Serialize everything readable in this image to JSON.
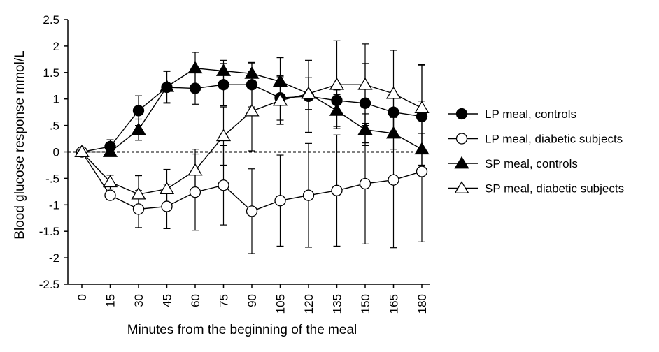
{
  "chart_data": {
    "type": "line",
    "xlabel": "Minutes from the beginning of the meal",
    "ylabel": "Blood glucose response mmol/L",
    "x": [
      0,
      15,
      30,
      45,
      60,
      75,
      90,
      105,
      120,
      135,
      150,
      165,
      180
    ],
    "x_tick_labels": [
      "0",
      "15",
      "30",
      "45",
      "60",
      "75",
      "90",
      "105",
      "120",
      "135",
      "150",
      "165",
      "180"
    ],
    "ylim": [
      -2.5,
      2.5
    ],
    "y_ticks": [
      -2.5,
      -2,
      -1.5,
      -1,
      -0.5,
      0,
      0.5,
      1,
      1.5,
      2,
      2.5
    ],
    "y_tick_labels": [
      "-2.5",
      "-2",
      "-1.5",
      "-1",
      "-.5",
      "0",
      ".5",
      "1",
      "1.5",
      "2",
      "2.5"
    ],
    "reference_line": {
      "y": 0,
      "style": "dashed"
    },
    "grid": false,
    "legend_position": "right",
    "series": [
      {
        "name": "LP meal, controls",
        "marker": "circle-filled",
        "values": [
          0,
          0.1,
          0.78,
          1.22,
          1.2,
          1.27,
          1.27,
          1.02,
          1.05,
          0.97,
          0.92,
          0.75,
          0.67
        ],
        "error": [
          0,
          0.13,
          0.28,
          0.3,
          0.3,
          0.4,
          0.42,
          0.42,
          0.68,
          0.2,
          0.75,
          0.35,
          0.97
        ]
      },
      {
        "name": "LP meal, diabetic subjects",
        "marker": "circle-open",
        "values": [
          0,
          -0.82,
          -1.08,
          -1.03,
          -0.76,
          -0.63,
          -1.12,
          -0.92,
          -0.82,
          -0.73,
          -0.6,
          -0.53,
          -0.37
        ],
        "error": [
          0,
          0.0,
          0.35,
          0.42,
          0.72,
          0.75,
          0.8,
          0.86,
          0.98,
          1.05,
          1.14,
          1.28,
          1.33
        ]
      },
      {
        "name": "SP meal, controls",
        "marker": "triangle-filled",
        "values": [
          0,
          0.0,
          0.42,
          1.23,
          1.58,
          1.53,
          1.48,
          1.33,
          1.1,
          0.78,
          0.42,
          0.35,
          0.05
        ],
        "error": [
          0,
          0.05,
          0.2,
          0.3,
          0.3,
          0.2,
          0.2,
          0.45,
          0.3,
          0.3,
          0.3,
          0.3,
          0.3
        ]
      },
      {
        "name": "SP meal, diabetic subjects",
        "marker": "triangle-open",
        "values": [
          0,
          -0.57,
          -0.8,
          -0.7,
          -0.35,
          0.3,
          0.77,
          0.97,
          1.1,
          1.27,
          1.27,
          1.1,
          0.83
        ],
        "error": [
          0,
          0.13,
          0.35,
          0.37,
          0.4,
          0.55,
          0.75,
          0.45,
          0.3,
          0.83,
          0.77,
          0.82,
          0.82
        ]
      }
    ]
  }
}
